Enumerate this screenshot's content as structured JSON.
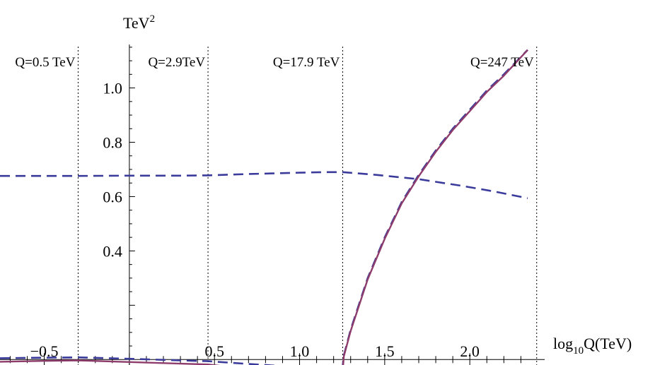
{
  "chart_data": {
    "type": "line",
    "title": "",
    "ylabel": "TeV",
    "ylabel_exponent": "2",
    "xlabel": "log",
    "xlabel_sub": "10",
    "xlabel_rest": "Q(TeV)",
    "xlim": [
      -0.76,
      2.34
    ],
    "ylim": [
      -0.02,
      1.16
    ],
    "x_ticks": [
      -0.5,
      0.5,
      1.0,
      1.5,
      2.0
    ],
    "x_tick_labels": [
      "−0.5",
      "0.5",
      "1.0",
      "1.5",
      "2.0"
    ],
    "y_ticks": [
      0.4,
      0.6,
      0.8,
      1.0
    ],
    "y_tick_labels": [
      "0.4",
      "0.6",
      "0.8",
      "1.0"
    ],
    "vertical_markers": [
      {
        "x": -0.301,
        "label": "Q=0.5 TeV"
      },
      {
        "x": 0.462,
        "label": "Q=2.9TeV"
      },
      {
        "x": 1.253,
        "label": "Q=17.9 TeV"
      },
      {
        "x": 2.393,
        "label": "Q=247 TeV"
      }
    ],
    "series": [
      {
        "style": "dashed",
        "color": "#3b3b9c",
        "x": [
          -0.76,
          -0.5,
          -0.3,
          0.0,
          0.3,
          0.462,
          0.7,
          1.0,
          1.15,
          1.253,
          1.45,
          1.7,
          1.95,
          2.15,
          2.34
        ],
        "y": [
          0.676,
          0.676,
          0.676,
          0.677,
          0.677,
          0.678,
          0.683,
          0.688,
          0.69,
          0.69,
          0.68,
          0.664,
          0.64,
          0.618,
          0.594
        ]
      },
      {
        "style": "dashed",
        "color": "#3b3b9c",
        "x": [
          -0.76,
          -0.5,
          -0.301,
          0.0,
          0.3,
          0.462,
          0.7,
          1.0,
          1.25,
          1.26,
          1.3,
          1.4,
          1.5,
          1.6,
          1.7,
          1.8,
          1.9,
          2.0,
          2.1,
          2.2,
          2.34
        ],
        "y": [
          0.005,
          0.007,
          0.008,
          0.003,
          -0.003,
          -0.006,
          -0.016,
          -0.028,
          -0.042,
          0.015,
          0.11,
          0.3,
          0.45,
          0.58,
          0.68,
          0.77,
          0.85,
          0.92,
          0.99,
          1.05,
          1.14
        ]
      },
      {
        "style": "solid",
        "color": "#8e3c6b",
        "x": [
          -0.76,
          -0.5,
          -0.301,
          0.0,
          0.3,
          0.462,
          0.7,
          1.0,
          1.25,
          1.26,
          1.3,
          1.4,
          1.5,
          1.6,
          1.7,
          1.8,
          1.9,
          2.0,
          2.1,
          2.2,
          2.34
        ],
        "y": [
          -0.008,
          -0.005,
          -0.003,
          -0.009,
          -0.015,
          -0.018,
          -0.035,
          -0.053,
          -0.07,
          0.012,
          0.105,
          0.295,
          0.445,
          0.575,
          0.675,
          0.765,
          0.845,
          0.915,
          0.985,
          1.045,
          1.14
        ]
      }
    ]
  }
}
